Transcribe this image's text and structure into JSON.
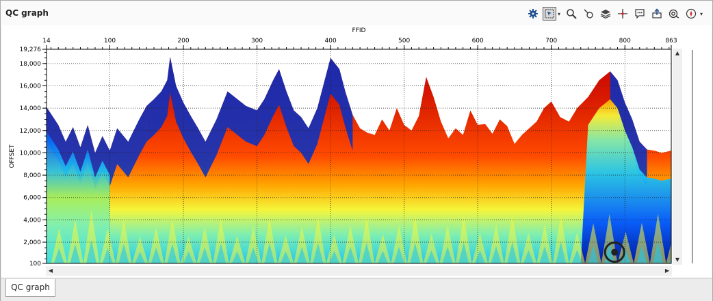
{
  "window": {
    "title": "QC graph"
  },
  "toolbar": {
    "buttons": [
      {
        "name": "settings-icon",
        "glyph": "⚙"
      },
      {
        "name": "select-mode-icon",
        "glyph": "⇱"
      },
      {
        "name": "zoom-icon",
        "glyph": "🔍"
      },
      {
        "name": "pick-icon",
        "glyph": "⌖"
      },
      {
        "name": "layers-icon",
        "glyph": "◈"
      },
      {
        "name": "crosshair-icon",
        "glyph": "✛"
      },
      {
        "name": "comment-icon",
        "glyph": "💬"
      },
      {
        "name": "export-icon",
        "glyph": "⇪"
      },
      {
        "name": "search-target-icon",
        "glyph": "◎"
      },
      {
        "name": "compass-icon",
        "glyph": "◉"
      }
    ]
  },
  "tabs": [
    {
      "label": "QC graph"
    }
  ],
  "chart_data": {
    "type": "heatmap",
    "xlabel": "FFID",
    "ylabel": "OFFSET",
    "xlim": [
      14,
      863
    ],
    "ylim": [
      100,
      19276
    ],
    "x_ticks": [
      14,
      100,
      200,
      300,
      400,
      500,
      600,
      700,
      800,
      863
    ],
    "x_tick_labels": [
      "14",
      "100",
      "200",
      "300",
      "400",
      "500",
      "600",
      "700",
      "800",
      "863"
    ],
    "y_ticks": [
      100,
      2000,
      4000,
      6000,
      8000,
      10000,
      12000,
      14000,
      16000,
      18000,
      19276
    ],
    "y_tick_labels": [
      "100",
      "2,000",
      "4,000",
      "6,000",
      "8,000",
      "10,000",
      "12,000",
      "14,000",
      "16,000",
      "18,000",
      "19,276"
    ],
    "grid": true,
    "x_axis_position": "top",
    "colormap": [
      "#00109a",
      "#0055ff",
      "#20c8f0",
      "#7fefb0",
      "#f5f53a",
      "#ffa500",
      "#ff4a00",
      "#c80000"
    ],
    "max_offset_profile": [
      [
        14,
        14100
      ],
      [
        30,
        12500
      ],
      [
        40,
        11000
      ],
      [
        50,
        12300
      ],
      [
        60,
        10500
      ],
      [
        70,
        12500
      ],
      [
        80,
        10000
      ],
      [
        90,
        11500
      ],
      [
        100,
        10200
      ],
      [
        110,
        12200
      ],
      [
        125,
        11000
      ],
      [
        140,
        13000
      ],
      [
        150,
        14200
      ],
      [
        160,
        14800
      ],
      [
        170,
        15500
      ],
      [
        178,
        16500
      ],
      [
        182,
        18600
      ],
      [
        190,
        16000
      ],
      [
        200,
        14500
      ],
      [
        210,
        13300
      ],
      [
        220,
        12200
      ],
      [
        230,
        11000
      ],
      [
        245,
        13000
      ],
      [
        260,
        15500
      ],
      [
        285,
        14200
      ],
      [
        300,
        13800
      ],
      [
        310,
        14800
      ],
      [
        322,
        16500
      ],
      [
        330,
        17500
      ],
      [
        340,
        15500
      ],
      [
        350,
        13800
      ],
      [
        360,
        13200
      ],
      [
        370,
        12200
      ],
      [
        382,
        14000
      ],
      [
        392,
        16500
      ],
      [
        400,
        18500
      ],
      [
        412,
        17500
      ],
      [
        420,
        15500
      ],
      [
        430,
        13400
      ],
      [
        440,
        12200
      ],
      [
        450,
        11800
      ],
      [
        460,
        11600
      ],
      [
        470,
        13000
      ],
      [
        480,
        12000
      ],
      [
        490,
        14000
      ],
      [
        500,
        12500
      ],
      [
        510,
        12000
      ],
      [
        520,
        13300
      ],
      [
        530,
        16800
      ],
      [
        540,
        15000
      ],
      [
        550,
        12800
      ],
      [
        560,
        11300
      ],
      [
        570,
        12200
      ],
      [
        580,
        11600
      ],
      [
        590,
        13800
      ],
      [
        600,
        12500
      ],
      [
        610,
        12600
      ],
      [
        620,
        11700
      ],
      [
        630,
        13000
      ],
      [
        640,
        12400
      ],
      [
        650,
        10800
      ],
      [
        660,
        11600
      ],
      [
        670,
        12200
      ],
      [
        680,
        12800
      ],
      [
        690,
        14000
      ],
      [
        700,
        14600
      ],
      [
        712,
        13200
      ],
      [
        724,
        12800
      ],
      [
        735,
        14000
      ],
      [
        750,
        15000
      ],
      [
        765,
        16500
      ],
      [
        780,
        17300
      ],
      [
        790,
        16500
      ],
      [
        800,
        14500
      ],
      [
        810,
        13000
      ],
      [
        820,
        11000
      ],
      [
        830,
        10300
      ],
      [
        840,
        10200
      ],
      [
        850,
        10000
      ],
      [
        863,
        10200
      ]
    ],
    "dark_regions": [
      {
        "x_from": 14,
        "x_to": 150,
        "color": "deep-blue"
      },
      {
        "x_from": 150,
        "x_to": 300,
        "color": "deep-blue"
      },
      {
        "x_from": 300,
        "x_to": 430,
        "color": "deep-blue"
      },
      {
        "x_from": 770,
        "x_to": 830,
        "color": "deep-blue"
      }
    ],
    "marker": {
      "x": 786,
      "y": 1100,
      "symbol": "target-circle"
    }
  }
}
